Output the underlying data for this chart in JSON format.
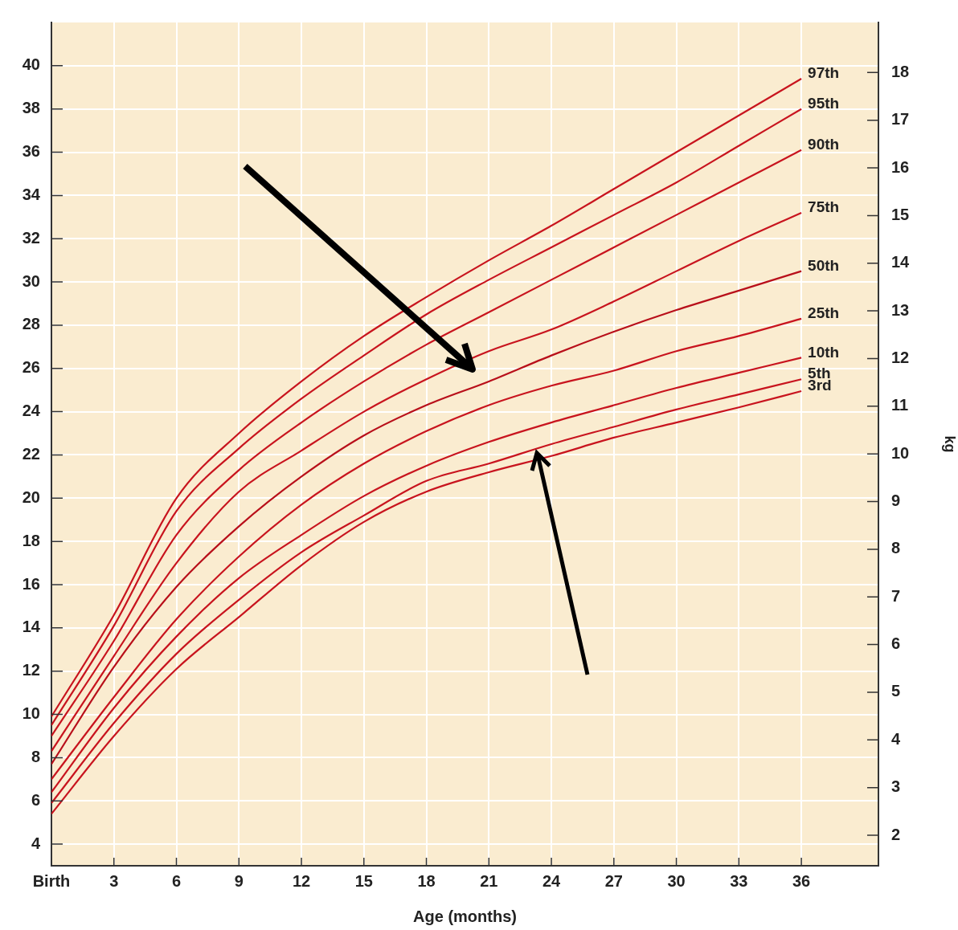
{
  "chart_data": {
    "type": "line",
    "xlabel": "Age (months)",
    "y2label": "kg",
    "x": [
      0,
      3,
      6,
      9,
      12,
      15,
      18,
      21,
      24,
      27,
      30,
      33,
      36
    ],
    "series": [
      {
        "name": "97th",
        "color": "#c8141e",
        "values": [
          9.9,
          14.6,
          20.0,
          23.0,
          25.4,
          27.5,
          29.3,
          31.0,
          32.6,
          34.3,
          36.0,
          37.7,
          39.4
        ]
      },
      {
        "name": "95th",
        "color": "#c8141e",
        "values": [
          9.5,
          14.1,
          19.4,
          22.3,
          24.6,
          26.6,
          28.5,
          30.1,
          31.6,
          33.1,
          34.6,
          36.3,
          38.0
        ]
      },
      {
        "name": "90th",
        "color": "#c8141e",
        "values": [
          9.0,
          13.4,
          18.3,
          21.3,
          23.5,
          25.4,
          27.1,
          28.6,
          30.1,
          31.6,
          33.1,
          34.6,
          36.1
        ]
      },
      {
        "name": "75th",
        "color": "#c8141e",
        "values": [
          8.3,
          12.7,
          17.0,
          20.3,
          22.2,
          24.0,
          25.5,
          26.8,
          27.8,
          29.1,
          30.5,
          31.9,
          33.2
        ]
      },
      {
        "name": "50th",
        "color": "#b80f1a",
        "values": [
          7.7,
          12.2,
          15.9,
          18.7,
          21.0,
          22.9,
          24.3,
          25.4,
          26.6,
          27.7,
          28.7,
          29.6,
          30.5
        ]
      },
      {
        "name": "25th",
        "color": "#c8141e",
        "values": [
          7.0,
          10.8,
          14.4,
          17.3,
          19.7,
          21.6,
          23.1,
          24.3,
          25.2,
          25.9,
          26.8,
          27.5,
          28.3
        ]
      },
      {
        "name": "10th",
        "color": "#c8141e",
        "values": [
          6.4,
          10.3,
          13.6,
          16.3,
          18.3,
          20.1,
          21.5,
          22.6,
          23.5,
          24.3,
          25.1,
          25.8,
          26.5
        ]
      },
      {
        "name": "5th",
        "color": "#c8141e",
        "values": [
          5.9,
          9.6,
          12.8,
          15.3,
          17.5,
          19.2,
          20.8,
          21.6,
          22.5,
          23.3,
          24.1,
          24.8,
          25.5
        ]
      },
      {
        "name": "3rd",
        "color": "#c8141e",
        "values": [
          5.4,
          9.0,
          12.1,
          14.5,
          16.9,
          18.9,
          20.3,
          21.2,
          21.95,
          22.8,
          23.5,
          24.2,
          24.95
        ]
      }
    ],
    "xlim": [
      0,
      39.7
    ],
    "xticks": [
      {
        "value": 0,
        "label": "Birth"
      },
      3,
      6,
      9,
      12,
      15,
      18,
      21,
      24,
      27,
      30,
      33,
      36
    ],
    "ylim": [
      3,
      42
    ],
    "yticks": [
      4,
      6,
      8,
      10,
      12,
      14,
      16,
      18,
      20,
      22,
      24,
      26,
      28,
      30,
      32,
      34,
      36,
      38,
      40
    ],
    "y2lim": [
      1.36,
      19.05
    ],
    "y2ticks": [
      2,
      3,
      4,
      5,
      6,
      7,
      8,
      9,
      10,
      11,
      12,
      13,
      14,
      15,
      16,
      17,
      18
    ],
    "grid": true,
    "legend": false,
    "marker": "none"
  }
}
